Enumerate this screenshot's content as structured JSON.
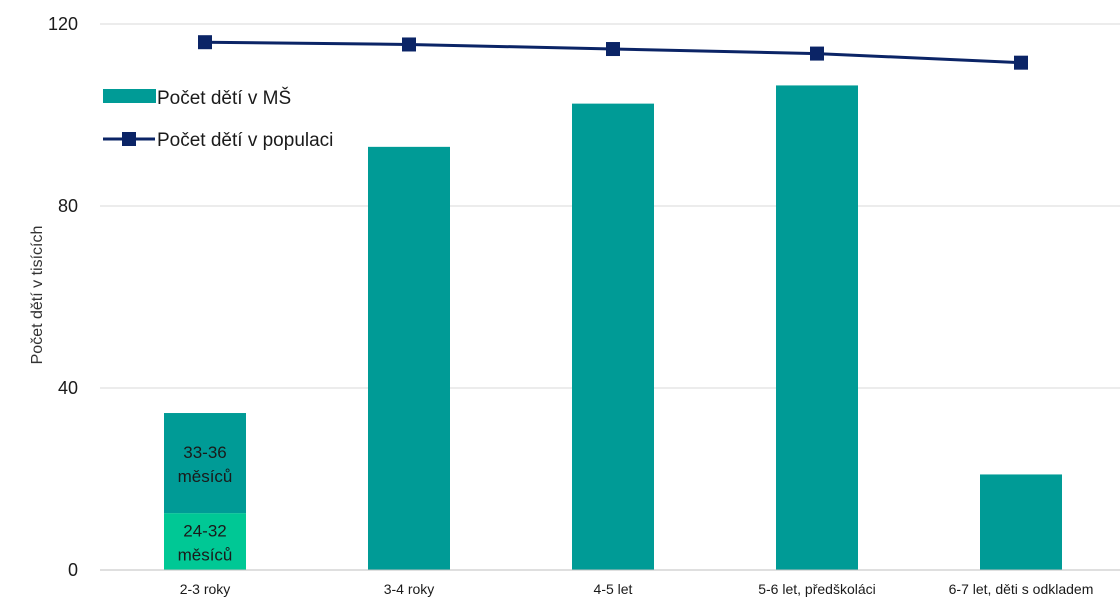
{
  "chart_data": {
    "type": "bar",
    "title": "",
    "ylabel": "Počet dětí v tisících",
    "xlabel": "",
    "ylim": [
      0,
      120
    ],
    "yticks": [
      0,
      40,
      80,
      120
    ],
    "grid": true,
    "legend_placement": "top-left",
    "categories": [
      "2-3 roky",
      "3-4 roky",
      "4-5 let",
      "5-6 let, předškoláci",
      "6-7 let, děti s odkladem"
    ],
    "series": [
      {
        "name": "Počet dětí v MŠ",
        "kind": "bar",
        "color": "#009b96",
        "values": [
          34.5,
          93,
          102.5,
          106.5,
          21
        ]
      },
      {
        "name": "Počet dětí v populaci",
        "kind": "line",
        "color": "#0b2466",
        "marker": "square",
        "values": [
          116,
          115.5,
          114.5,
          113.5,
          111.5
        ]
      }
    ],
    "stacked_breakdown": {
      "category": "2-3 roky",
      "segments": [
        {
          "label": "24-32 měsíců",
          "value": 12.5,
          "color": "#00c895"
        },
        {
          "label": "33-36 měsíců",
          "value": 22,
          "color": "#009b96"
        }
      ]
    }
  }
}
